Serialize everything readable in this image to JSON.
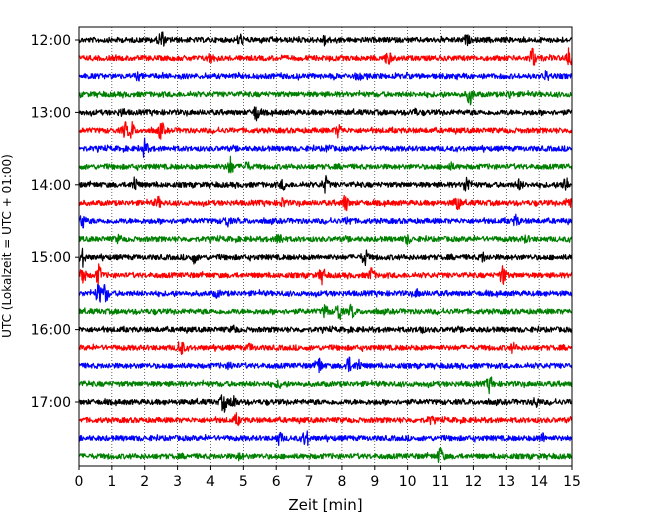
{
  "chart_data": {
    "type": "line",
    "title": "",
    "xlabel": "Zeit  [min]",
    "ylabel": "UTC (Lokalzeit = UTC + 01:00)",
    "xlim": [
      0,
      15
    ],
    "x_ticks": [
      "0",
      "1",
      "2",
      "3",
      "4",
      "5",
      "6",
      "7",
      "8",
      "9",
      "10",
      "11",
      "12",
      "13",
      "14",
      "15"
    ],
    "y_ticks": [
      "12:00",
      "13:00",
      "14:00",
      "15:00",
      "16:00",
      "17:00"
    ],
    "trace_interval_min": 15,
    "grid": "vertical-dotted",
    "colors": [
      "#000000",
      "#ff0000",
      "#0000ff",
      "#008000"
    ],
    "traces": [
      {
        "start": "12:00",
        "events": [
          [
            2.5,
            1.0
          ],
          [
            4.9,
            0.6
          ],
          [
            7.5,
            0.5
          ],
          [
            11.8,
            0.4
          ]
        ]
      },
      {
        "start": "12:15",
        "events": [
          [
            4.0,
            0.4
          ],
          [
            9.4,
            0.7
          ],
          [
            13.8,
            1.1
          ],
          [
            14.9,
            1.0
          ]
        ]
      },
      {
        "start": "12:30",
        "events": [
          [
            1.8,
            0.3
          ],
          [
            8.5,
            0.3
          ],
          [
            14.2,
            0.4
          ]
        ]
      },
      {
        "start": "12:45",
        "events": [
          [
            11.9,
            1.0
          ],
          [
            13.1,
            0.3
          ]
        ]
      },
      {
        "start": "13:00",
        "events": [
          [
            5.4,
            0.8
          ],
          [
            1.3,
            0.3
          ],
          [
            10.2,
            0.3
          ]
        ]
      },
      {
        "start": "13:15",
        "events": [
          [
            1.4,
            0.7
          ],
          [
            1.6,
            0.8
          ],
          [
            2.5,
            0.8
          ],
          [
            7.9,
            0.6
          ]
        ]
      },
      {
        "start": "13:30",
        "events": [
          [
            2.0,
            0.9
          ],
          [
            7.6,
            0.3
          ]
        ]
      },
      {
        "start": "13:45",
        "events": [
          [
            4.6,
            0.9
          ],
          [
            5.1,
            0.4
          ],
          [
            11.3,
            0.3
          ]
        ]
      },
      {
        "start": "14:00",
        "events": [
          [
            1.7,
            0.8
          ],
          [
            7.5,
            0.8
          ],
          [
            11.8,
            0.9
          ],
          [
            14.8,
            0.9
          ],
          [
            6.2,
            0.4
          ],
          [
            13.4,
            0.5
          ]
        ]
      },
      {
        "start": "14:15",
        "events": [
          [
            2.4,
            0.5
          ],
          [
            6.2,
            0.4
          ],
          [
            8.1,
            0.8
          ],
          [
            11.5,
            0.8
          ],
          [
            14.9,
            0.6
          ]
        ]
      },
      {
        "start": "14:30",
        "events": [
          [
            0.1,
            0.8
          ],
          [
            4.5,
            0.5
          ],
          [
            8.2,
            0.4
          ],
          [
            13.3,
            0.5
          ]
        ]
      },
      {
        "start": "14:45",
        "events": [
          [
            1.2,
            0.3
          ],
          [
            6.1,
            0.7
          ],
          [
            10.0,
            0.4
          ],
          [
            13.6,
            0.3
          ]
        ]
      },
      {
        "start": "15:00",
        "events": [
          [
            0.1,
            0.9
          ],
          [
            3.5,
            0.5
          ],
          [
            8.7,
            0.8
          ],
          [
            12.3,
            0.4
          ]
        ]
      },
      {
        "start": "15:15",
        "events": [
          [
            0.1,
            1.1
          ],
          [
            0.6,
            1.0
          ],
          [
            7.4,
            0.8
          ],
          [
            8.9,
            0.7
          ],
          [
            12.9,
            1.0
          ]
        ]
      },
      {
        "start": "15:30",
        "events": [
          [
            0.6,
            1.0
          ],
          [
            0.8,
            0.9
          ],
          [
            4.2,
            0.3
          ],
          [
            10.3,
            0.3
          ]
        ]
      },
      {
        "start": "15:45",
        "events": [
          [
            7.9,
            1.0
          ],
          [
            7.5,
            0.6
          ],
          [
            8.3,
            0.6
          ]
        ]
      },
      {
        "start": "16:00",
        "events": [
          [
            4.7,
            0.3
          ],
          [
            10.4,
            0.3
          ]
        ]
      },
      {
        "start": "16:15",
        "events": [
          [
            3.1,
            0.9
          ],
          [
            13.2,
            0.4
          ],
          [
            5.2,
            0.3
          ]
        ]
      },
      {
        "start": "16:30",
        "events": [
          [
            7.3,
            0.8
          ],
          [
            8.2,
            0.8
          ],
          [
            8.5,
            0.6
          ],
          [
            4.6,
            0.3
          ]
        ]
      },
      {
        "start": "16:45",
        "events": [
          [
            12.5,
            0.8
          ],
          [
            6.1,
            0.3
          ]
        ]
      },
      {
        "start": "17:00",
        "events": [
          [
            4.4,
            1.0
          ],
          [
            4.7,
            0.7
          ],
          [
            13.9,
            0.5
          ]
        ]
      },
      {
        "start": "17:15",
        "events": [
          [
            4.8,
            0.5
          ],
          [
            10.7,
            0.3
          ]
        ]
      },
      {
        "start": "17:30",
        "events": [
          [
            6.1,
            0.6
          ],
          [
            6.9,
            0.9
          ],
          [
            14.1,
            0.4
          ]
        ]
      },
      {
        "start": "17:45",
        "events": [
          [
            11.0,
            0.9
          ],
          [
            4.9,
            0.3
          ]
        ]
      }
    ]
  }
}
